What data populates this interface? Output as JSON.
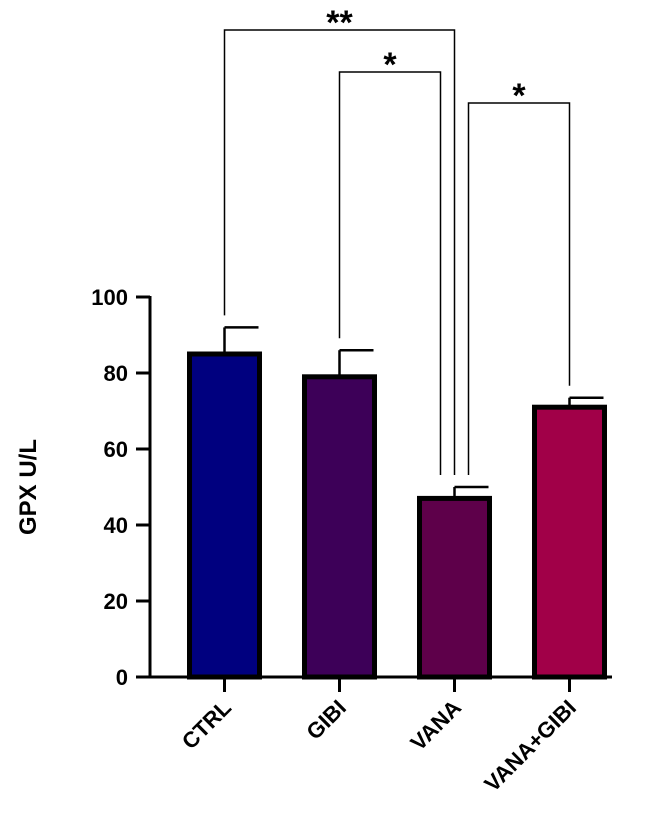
{
  "chart_data": {
    "type": "bar",
    "y_label": "GPX U/L",
    "categories": [
      "CTRL",
      "GIBI",
      "VANA",
      "VANA+GIBI"
    ],
    "values": [
      85,
      79,
      47,
      71
    ],
    "errors": [
      7,
      7,
      3,
      2.5
    ],
    "colors": [
      "#00007f",
      "#3d0058",
      "#5e004a",
      "#a10048"
    ],
    "ylim": [
      0,
      100
    ],
    "yticks": [
      0,
      20,
      40,
      60,
      80,
      100
    ],
    "significance": [
      {
        "from": 0,
        "to": 2,
        "label": "**"
      },
      {
        "from": 1,
        "to": 2,
        "label": "*"
      },
      {
        "from": 2,
        "to": 3,
        "label": "*"
      }
    ]
  }
}
